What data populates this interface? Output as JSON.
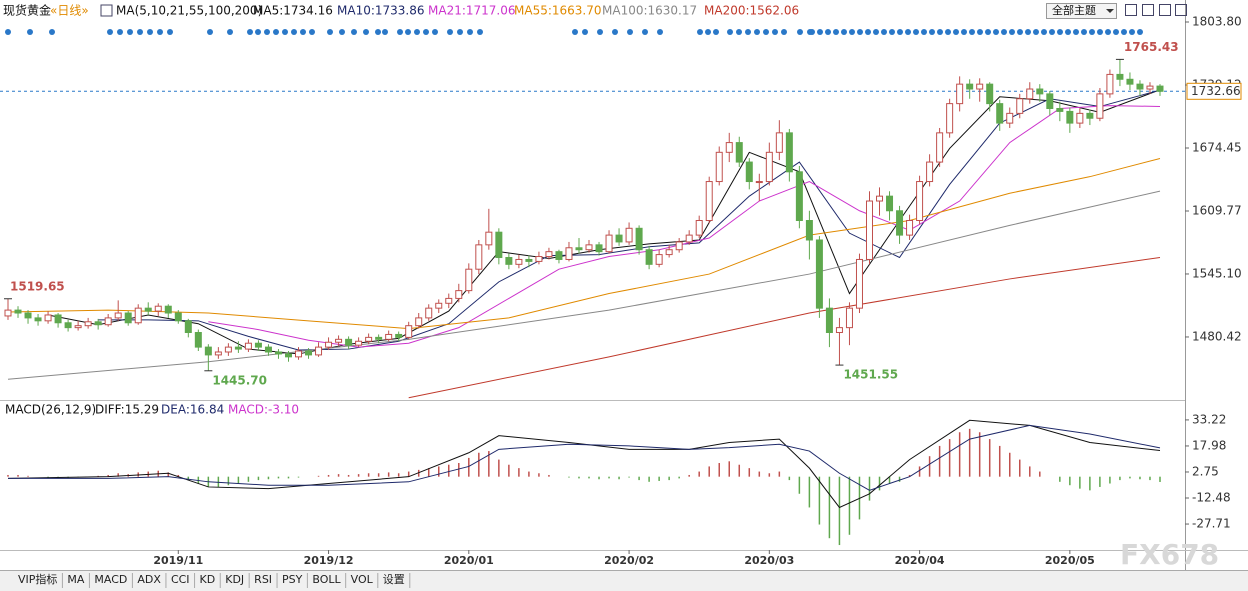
{
  "header": {
    "symbol": "现货黄金",
    "period": "«日线»",
    "ma_params": "MA(5,10,21,55,100,200)",
    "theme_button": "全部主题"
  },
  "tabs": [
    "VIP指标",
    "MA",
    "MACD",
    "ADX",
    "CCI",
    "KD",
    "KDJ",
    "RSI",
    "PSY",
    "BOLL",
    "VOL",
    "设置"
  ],
  "watermark": "FX678",
  "chart_data": {
    "type": "candlestick",
    "ylim": [
      1415.7,
      1811
    ],
    "yticks": [
      {
        "value": 1803.8,
        "label": "1803.80"
      },
      {
        "value": 1739.12,
        "label": "1739.12"
      },
      {
        "value": 1674.45,
        "label": "1674.45"
      },
      {
        "value": 1609.77,
        "label": "1609.77"
      },
      {
        "value": 1545.1,
        "label": "1545.10"
      },
      {
        "value": 1480.42,
        "label": "1480.42"
      }
    ],
    "xlim": [
      0,
      115
    ],
    "xticks": [
      {
        "value": 17,
        "label": "2019/11"
      },
      {
        "value": 32,
        "label": "2019/12"
      },
      {
        "value": 46,
        "label": "2020/01"
      },
      {
        "value": 62,
        "label": "2020/02"
      },
      {
        "value": 76,
        "label": "2020/03"
      },
      {
        "value": 91,
        "label": "2020/04"
      },
      {
        "value": 106,
        "label": "2020/05"
      }
    ],
    "last_price": 1732.66,
    "up_color": "#c0504d",
    "down_color": "#5fa84e",
    "candles": [
      [
        1502,
        1519.65,
        1498,
        1508
      ],
      [
        1508,
        1512,
        1500,
        1505
      ],
      [
        1505,
        1508,
        1494,
        1500
      ],
      [
        1500,
        1504,
        1492,
        1497
      ],
      [
        1497,
        1507,
        1494,
        1503
      ],
      [
        1503,
        1505,
        1490,
        1495
      ],
      [
        1495,
        1498,
        1486,
        1490
      ],
      [
        1490,
        1497,
        1487,
        1492
      ],
      [
        1492,
        1500,
        1489,
        1496
      ],
      [
        1496,
        1499,
        1488,
        1493
      ],
      [
        1493,
        1504,
        1491,
        1500
      ],
      [
        1500,
        1518,
        1497,
        1505
      ],
      [
        1505,
        1507,
        1492,
        1495
      ],
      [
        1495,
        1514,
        1493,
        1510
      ],
      [
        1510,
        1516,
        1503,
        1507
      ],
      [
        1507,
        1515,
        1502,
        1512
      ],
      [
        1512,
        1514,
        1500,
        1505
      ],
      [
        1505,
        1508,
        1494,
        1497
      ],
      [
        1497,
        1499,
        1480,
        1485
      ],
      [
        1485,
        1488,
        1466,
        1470
      ],
      [
        1470,
        1473,
        1445.7,
        1462
      ],
      [
        1462,
        1470,
        1458,
        1465
      ],
      [
        1465,
        1474,
        1461,
        1470
      ],
      [
        1470,
        1476,
        1464,
        1468
      ],
      [
        1468,
        1478,
        1465,
        1474
      ],
      [
        1474,
        1477,
        1466,
        1470
      ],
      [
        1470,
        1473,
        1461,
        1465
      ],
      [
        1465,
        1468,
        1458,
        1463
      ],
      [
        1463,
        1466,
        1455,
        1460
      ],
      [
        1460,
        1470,
        1457,
        1466
      ],
      [
        1466,
        1469,
        1458,
        1462
      ],
      [
        1462,
        1475,
        1460,
        1470
      ],
      [
        1470,
        1480,
        1467,
        1475
      ],
      [
        1475,
        1482,
        1471,
        1478
      ],
      [
        1478,
        1481,
        1468,
        1472
      ],
      [
        1472,
        1480,
        1470,
        1476
      ],
      [
        1476,
        1484,
        1473,
        1480
      ],
      [
        1480,
        1483,
        1474,
        1478
      ],
      [
        1478,
        1487,
        1476,
        1483
      ],
      [
        1483,
        1486,
        1476,
        1480
      ],
      [
        1480,
        1496,
        1478,
        1492
      ],
      [
        1492,
        1505,
        1489,
        1500
      ],
      [
        1500,
        1514,
        1497,
        1510
      ],
      [
        1510,
        1519,
        1505,
        1515
      ],
      [
        1515,
        1525,
        1510,
        1520
      ],
      [
        1520,
        1535,
        1516,
        1528
      ],
      [
        1528,
        1556,
        1525,
        1550
      ],
      [
        1550,
        1580,
        1545,
        1575
      ],
      [
        1575,
        1612,
        1570,
        1588
      ],
      [
        1588,
        1592,
        1555,
        1562
      ],
      [
        1562,
        1566,
        1550,
        1555
      ],
      [
        1555,
        1565,
        1551,
        1560
      ],
      [
        1560,
        1564,
        1552,
        1558
      ],
      [
        1558,
        1568,
        1555,
        1563
      ],
      [
        1563,
        1572,
        1560,
        1568
      ],
      [
        1568,
        1570,
        1556,
        1560
      ],
      [
        1560,
        1578,
        1558,
        1572
      ],
      [
        1572,
        1582,
        1566,
        1570
      ],
      [
        1570,
        1580,
        1567,
        1575
      ],
      [
        1575,
        1578,
        1564,
        1568
      ],
      [
        1568,
        1590,
        1566,
        1585
      ],
      [
        1585,
        1592,
        1574,
        1578
      ],
      [
        1578,
        1598,
        1575,
        1592
      ],
      [
        1592,
        1595,
        1565,
        1570
      ],
      [
        1570,
        1574,
        1550,
        1555
      ],
      [
        1555,
        1570,
        1552,
        1565
      ],
      [
        1565,
        1575,
        1562,
        1570
      ],
      [
        1570,
        1582,
        1567,
        1578
      ],
      [
        1578,
        1590,
        1575,
        1585
      ],
      [
        1585,
        1605,
        1582,
        1600
      ],
      [
        1600,
        1645,
        1597,
        1640
      ],
      [
        1640,
        1676,
        1636,
        1670
      ],
      [
        1670,
        1690,
        1660,
        1680
      ],
      [
        1680,
        1686,
        1655,
        1660
      ],
      [
        1660,
        1664,
        1632,
        1640
      ],
      [
        1640,
        1648,
        1620,
        1640
      ],
      [
        1640,
        1680,
        1636,
        1670
      ],
      [
        1670,
        1703,
        1662,
        1690
      ],
      [
        1690,
        1694,
        1640,
        1650
      ],
      [
        1650,
        1656,
        1592,
        1600
      ],
      [
        1600,
        1610,
        1560,
        1580
      ],
      [
        1580,
        1584,
        1500,
        1510
      ],
      [
        1510,
        1520,
        1470,
        1485
      ],
      [
        1485,
        1500,
        1451.55,
        1490
      ],
      [
        1490,
        1516,
        1472,
        1510
      ],
      [
        1510,
        1566,
        1505,
        1560
      ],
      [
        1560,
        1630,
        1555,
        1620
      ],
      [
        1620,
        1634,
        1605,
        1625
      ],
      [
        1625,
        1630,
        1600,
        1610
      ],
      [
        1610,
        1615,
        1576,
        1585
      ],
      [
        1585,
        1606,
        1580,
        1600
      ],
      [
        1600,
        1646,
        1596,
        1640
      ],
      [
        1640,
        1668,
        1635,
        1660
      ],
      [
        1660,
        1695,
        1655,
        1690
      ],
      [
        1690,
        1725,
        1685,
        1720
      ],
      [
        1720,
        1748,
        1712,
        1740
      ],
      [
        1740,
        1745,
        1725,
        1735
      ],
      [
        1735,
        1746,
        1722,
        1740
      ],
      [
        1740,
        1742,
        1712,
        1720
      ],
      [
        1720,
        1724,
        1692,
        1700
      ],
      [
        1700,
        1716,
        1695,
        1710
      ],
      [
        1710,
        1730,
        1705,
        1725
      ],
      [
        1725,
        1742,
        1720,
        1735
      ],
      [
        1735,
        1740,
        1722,
        1730
      ],
      [
        1730,
        1733,
        1708,
        1715
      ],
      [
        1715,
        1722,
        1702,
        1712
      ],
      [
        1712,
        1716,
        1690,
        1700
      ],
      [
        1700,
        1715,
        1695,
        1710
      ],
      [
        1710,
        1714,
        1698,
        1705
      ],
      [
        1705,
        1736,
        1702,
        1730
      ],
      [
        1730,
        1755,
        1726,
        1750
      ],
      [
        1750,
        1765.43,
        1738,
        1745
      ],
      [
        1745,
        1752,
        1734,
        1740
      ],
      [
        1740,
        1744,
        1728,
        1735
      ],
      [
        1735,
        1742,
        1730,
        1738
      ],
      [
        1738,
        1740,
        1728,
        1732.66
      ]
    ],
    "annotations": [
      {
        "x": 0,
        "value": 1519.65,
        "label": "1519.65",
        "color": "#c0504d"
      },
      {
        "x": 20,
        "value": 1445.7,
        "label": "1445.70",
        "color": "#5fa84e"
      },
      {
        "x": 83,
        "value": 1451.55,
        "label": "1451.55",
        "color": "#5fa84e"
      },
      {
        "x": 111,
        "value": 1765.43,
        "label": "1765.43",
        "color": "#c0504d"
      }
    ],
    "series": [
      {
        "name": "MA5:1734.16",
        "color": "#111111",
        "x": [
          4,
          9,
          14,
          19,
          24,
          29,
          34,
          39,
          44,
          49,
          54,
          59,
          64,
          69,
          74,
          79,
          84,
          89,
          94,
          99,
          104,
          109,
          115
        ],
        "values": [
          1503,
          1493,
          1503,
          1494,
          1468,
          1463,
          1473,
          1479,
          1507,
          1568,
          1561,
          1570,
          1576,
          1580,
          1670,
          1650,
          1525,
          1600,
          1674,
          1727,
          1723,
          1711,
          1734.16
        ]
      },
      {
        "name": "MA10:1733.86",
        "color": "#1f2a6b",
        "x": [
          9,
          14,
          19,
          24,
          29,
          34,
          39,
          44,
          49,
          54,
          59,
          64,
          69,
          74,
          79,
          84,
          89,
          94,
          99,
          104,
          109,
          115
        ],
        "values": [
          1498,
          1498,
          1497,
          1481,
          1467,
          1468,
          1476,
          1494,
          1537,
          1564,
          1565,
          1573,
          1577,
          1625,
          1660,
          1587,
          1562,
          1637,
          1700,
          1725,
          1717,
          1733.86
        ]
      },
      {
        "name": "MA21:1717.06",
        "color": "#cc33cc",
        "x": [
          20,
          25,
          30,
          35,
          40,
          45,
          50,
          55,
          60,
          65,
          70,
          75,
          80,
          85,
          90,
          95,
          100,
          105,
          110,
          115
        ],
        "values": [
          1496,
          1488,
          1477,
          1470,
          1474,
          1490,
          1520,
          1550,
          1563,
          1570,
          1582,
          1620,
          1640,
          1610,
          1590,
          1620,
          1680,
          1715,
          1718,
          1717.06
        ]
      },
      {
        "name": "MA55:1663.70",
        "color": "#e08a00",
        "x": [
          0,
          10,
          20,
          30,
          40,
          50,
          60,
          70,
          80,
          90,
          100,
          108,
          115
        ],
        "values": [
          1506,
          1508,
          1505,
          1497,
          1489,
          1500,
          1525,
          1545,
          1585,
          1600,
          1628,
          1645,
          1663.7
        ]
      },
      {
        "name": "MA100:1630.17",
        "color": "#888888",
        "x": [
          0,
          20,
          40,
          60,
          80,
          100,
          115
        ],
        "values": [
          1437,
          1455,
          1478,
          1508,
          1545,
          1595,
          1630.17
        ]
      },
      {
        "name": "MA200:1562.06",
        "color": "#c0392b",
        "x": [
          40,
          60,
          80,
          100,
          115
        ],
        "values": [
          1418,
          1460,
          1505,
          1540,
          1562.06
        ]
      }
    ],
    "macd": {
      "title": "MACD(26,12,9)",
      "ylim": [
        -42.9,
        43.7
      ],
      "yticks": [
        33.22,
        17.98,
        2.75,
        -12.48,
        -27.71
      ],
      "histogram": {
        "name": "MACD:-3.10",
        "color": "#cc33cc",
        "up_color": "#c0504d",
        "down_color": "#5fa84e",
        "values": [
          1,
          1,
          0.5,
          0,
          -0.5,
          -1,
          -1,
          -0.5,
          0,
          0.5,
          1,
          2,
          1.5,
          2.5,
          3,
          3.5,
          2.5,
          1,
          -2,
          -4,
          -6,
          -6,
          -5,
          -4,
          -3,
          -2,
          -1.5,
          -1,
          -1,
          -0.5,
          0,
          0.5,
          1,
          1.5,
          1,
          1.5,
          2,
          2,
          2.5,
          2,
          3,
          4,
          5,
          6,
          7,
          8,
          11,
          14,
          15,
          10,
          7,
          5,
          3,
          2,
          1,
          0,
          -0.5,
          -1,
          -1,
          -1.5,
          -1,
          -1.5,
          -0.5,
          -2,
          -3,
          -2.5,
          -2,
          -1,
          1,
          3,
          6,
          8,
          9,
          7,
          5,
          3,
          2,
          3,
          -2,
          -10,
          -18,
          -28,
          -36,
          -40,
          -34,
          -25,
          -14,
          -8,
          -4,
          -3,
          1,
          6,
          12,
          18,
          22,
          26,
          28,
          26,
          22,
          18,
          14,
          10,
          6,
          3,
          0,
          -3,
          -5,
          -7,
          -8,
          -6,
          -4,
          -2,
          -1,
          -1.5,
          -2,
          -3.1
        ]
      },
      "lines": [
        {
          "name": "DIFF:15.29",
          "color": "#111111",
          "x": [
            0,
            10,
            16,
            20,
            26,
            32,
            40,
            46,
            49,
            56,
            62,
            68,
            72,
            77,
            80,
            83,
            86,
            90,
            96,
            102,
            108,
            115
          ],
          "values": [
            -1,
            0,
            2,
            -6,
            -7,
            -4,
            0,
            14,
            24,
            20,
            16,
            16,
            20,
            22,
            5,
            -18,
            -10,
            10,
            33,
            30,
            20,
            15.29
          ]
        },
        {
          "name": "DEA:16.84",
          "color": "#1f2a6b",
          "x": [
            0,
            10,
            16,
            20,
            26,
            32,
            40,
            46,
            49,
            56,
            62,
            68,
            72,
            77,
            80,
            83,
            86,
            90,
            96,
            102,
            108,
            115
          ],
          "values": [
            -1,
            -1,
            0,
            -3,
            -5,
            -5,
            -3,
            6,
            16,
            19,
            18,
            16,
            17,
            19,
            15,
            2,
            -8,
            0,
            22,
            30,
            25,
            16.84
          ]
        }
      ]
    }
  }
}
